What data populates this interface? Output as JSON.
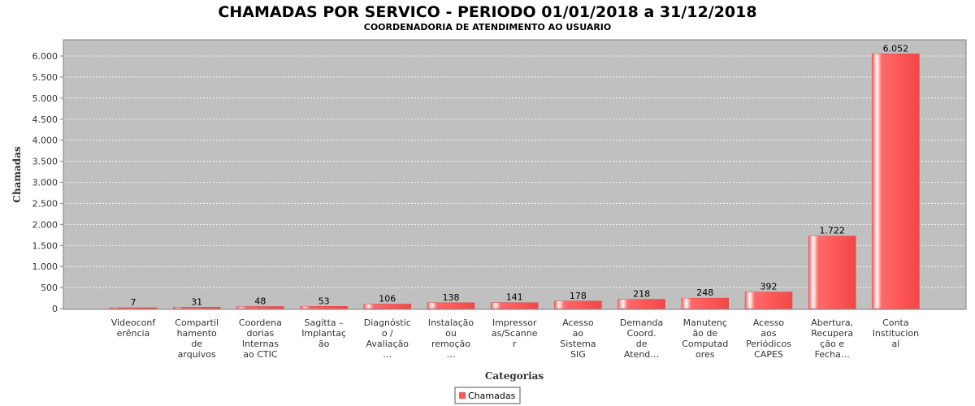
{
  "chart_data": {
    "type": "bar",
    "title": "CHAMADAS POR SERVICO - PERIODO 01/01/2018 a 31/12/2018",
    "subtitle": "COORDENADORIA DE ATENDIMENTO AO USUARIO",
    "xlabel": "Categorias",
    "ylabel": "Chamadas",
    "ylim": [
      0,
      6250
    ],
    "yticks": [
      0,
      500,
      1000,
      1500,
      2000,
      2500,
      3000,
      3500,
      4000,
      4500,
      5000,
      5500,
      6000
    ],
    "ytick_labels": [
      "0",
      "500",
      "1.000",
      "1.500",
      "2.000",
      "2.500",
      "3.000",
      "3.500",
      "4.000",
      "4.500",
      "5.000",
      "5.500",
      "6.000"
    ],
    "grid": true,
    "legend_position": "bottom",
    "categories": [
      [
        "Videoconf",
        "erência"
      ],
      [
        "Compartil",
        "hamento",
        "de",
        "arquivos"
      ],
      [
        "Coordena",
        "dorias",
        "Internas",
        "ao CTIC"
      ],
      [
        "Sagitta –",
        "Implantaç",
        "ão"
      ],
      [
        "Diagnóstic",
        "o /",
        "Avaliação",
        "…"
      ],
      [
        "Instalação",
        "ou",
        "remoção",
        "…"
      ],
      [
        "Impressor",
        "as/Scanne",
        "r"
      ],
      [
        "Acesso",
        "ao",
        "Sistema",
        "SIG"
      ],
      [
        "Demanda",
        "Coord.",
        "de",
        "Atend…"
      ],
      [
        "Manutenç",
        "ão de",
        "Computad",
        "ores"
      ],
      [
        "Acesso",
        "aos",
        "Periódicos",
        "CAPES"
      ],
      [
        "Abertura,",
        "Recupera",
        "ção e",
        "Fecha…"
      ],
      [
        "Conta",
        "Institucion",
        "al"
      ]
    ],
    "series": [
      {
        "name": "Chamadas",
        "values": [
          7,
          31,
          48,
          53,
          106,
          138,
          141,
          178,
          218,
          248,
          392,
          1722,
          6052
        ],
        "labels": [
          "7",
          "31",
          "48",
          "53",
          "106",
          "138",
          "141",
          "178",
          "218",
          "248",
          "392",
          "1.722",
          "6.052"
        ],
        "color": "#ff5555"
      }
    ],
    "colors": {
      "plot_background": "#c0c0c0",
      "gridline": "#ffffff",
      "bar": "#ff5555"
    }
  }
}
